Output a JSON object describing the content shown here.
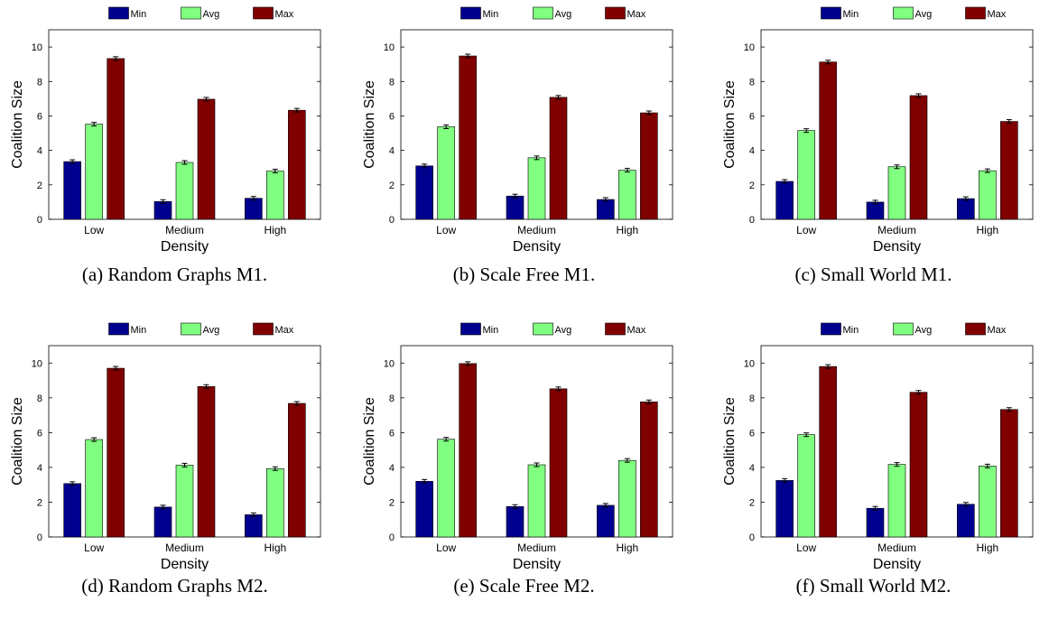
{
  "colors": {
    "min": "#00008f",
    "avg": "#80ff80",
    "max": "#800000"
  },
  "chart_data": [
    {
      "type": "bar",
      "caption": "(a) Random Graphs M1.",
      "categories": [
        "Low",
        "Medium",
        "High"
      ],
      "series": [
        {
          "name": "Min",
          "values": [
            3.35,
            1.03,
            1.22
          ]
        },
        {
          "name": "Avg",
          "values": [
            5.52,
            3.3,
            2.8
          ]
        },
        {
          "name": "Max",
          "values": [
            9.33,
            6.97,
            6.33
          ]
        }
      ],
      "xlabel": "Density",
      "ylabel": "Coalition Size",
      "ylim": [
        0,
        11
      ],
      "yticks": [
        0,
        2,
        4,
        6,
        8,
        10
      ],
      "legend": "top-center",
      "grid": false
    },
    {
      "type": "bar",
      "caption": "(b) Scale Free M1.",
      "categories": [
        "Low",
        "Medium",
        "High"
      ],
      "series": [
        {
          "name": "Min",
          "values": [
            3.1,
            1.35,
            1.15
          ]
        },
        {
          "name": "Avg",
          "values": [
            5.37,
            3.57,
            2.85
          ]
        },
        {
          "name": "Max",
          "values": [
            9.48,
            7.08,
            6.18
          ]
        }
      ],
      "xlabel": "Density",
      "ylabel": "Coalition Size",
      "ylim": [
        0,
        11
      ],
      "yticks": [
        0,
        2,
        4,
        6,
        8,
        10
      ],
      "legend": "top-center",
      "grid": false
    },
    {
      "type": "bar",
      "caption": "(c) Small World M1.",
      "categories": [
        "Low",
        "Medium",
        "High"
      ],
      "series": [
        {
          "name": "Min",
          "values": [
            2.2,
            1.0,
            1.2
          ]
        },
        {
          "name": "Avg",
          "values": [
            5.15,
            3.05,
            2.82
          ]
        },
        {
          "name": "Max",
          "values": [
            9.13,
            7.18,
            5.68
          ]
        }
      ],
      "xlabel": "Density",
      "ylabel": "Coalition Size",
      "ylim": [
        0,
        11
      ],
      "yticks": [
        0,
        2,
        4,
        6,
        8,
        10
      ],
      "legend": "top-center",
      "grid": false
    },
    {
      "type": "bar",
      "caption": "(d) Random Graphs M2.",
      "categories": [
        "Low",
        "Medium",
        "High"
      ],
      "series": [
        {
          "name": "Min",
          "values": [
            3.07,
            1.72,
            1.28
          ]
        },
        {
          "name": "Avg",
          "values": [
            5.6,
            4.13,
            3.93
          ]
        },
        {
          "name": "Max",
          "values": [
            9.7,
            8.65,
            7.68
          ]
        }
      ],
      "xlabel": "Density",
      "ylabel": "Coalition Size",
      "ylim": [
        0,
        11
      ],
      "yticks": [
        0,
        2,
        4,
        6,
        8,
        10
      ],
      "legend": "top-center",
      "grid": false
    },
    {
      "type": "bar",
      "caption": "(e) Scale Free M2.",
      "categories": [
        "Low",
        "Medium",
        "High"
      ],
      "series": [
        {
          "name": "Min",
          "values": [
            3.2,
            1.75,
            1.82
          ]
        },
        {
          "name": "Avg",
          "values": [
            5.62,
            4.15,
            4.4
          ]
        },
        {
          "name": "Max",
          "values": [
            9.97,
            8.52,
            7.77
          ]
        }
      ],
      "xlabel": "Density",
      "ylabel": "Coalition Size",
      "ylim": [
        0,
        11
      ],
      "yticks": [
        0,
        2,
        4,
        6,
        8,
        10
      ],
      "legend": "top-center",
      "grid": false
    },
    {
      "type": "bar",
      "caption": "(f) Small World M2.",
      "categories": [
        "Low",
        "Medium",
        "High"
      ],
      "series": [
        {
          "name": "Min",
          "values": [
            3.25,
            1.65,
            1.88
          ]
        },
        {
          "name": "Avg",
          "values": [
            5.88,
            4.17,
            4.08
          ]
        },
        {
          "name": "Max",
          "values": [
            9.8,
            8.32,
            7.33
          ]
        }
      ],
      "xlabel": "Density",
      "ylabel": "Coalition Size",
      "ylim": [
        0,
        11
      ],
      "yticks": [
        0,
        2,
        4,
        6,
        8,
        10
      ],
      "legend": "top-center",
      "grid": false
    }
  ]
}
